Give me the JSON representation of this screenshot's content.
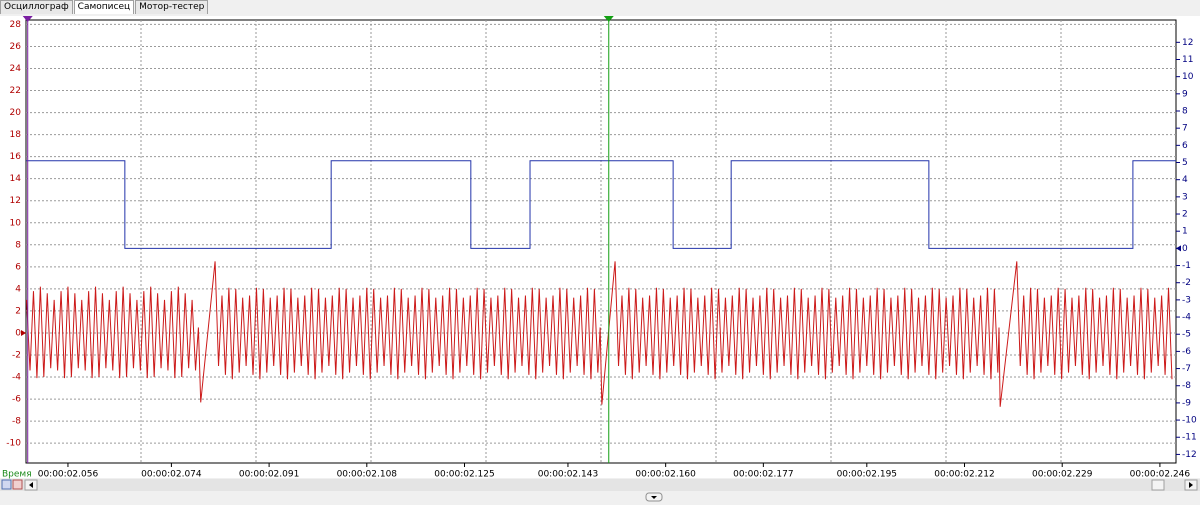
{
  "tabs": [
    "Осциллограф",
    "Самописец",
    "Мотор-тестер"
  ],
  "chart_data": {
    "type": "line",
    "x_label": "Время",
    "xlim": [
      2048.7,
      2248.8
    ],
    "xticks": [
      {
        "value": 2056,
        "label": "00:00:02.056"
      },
      {
        "value": 2074,
        "label": "00:00:02.074"
      },
      {
        "value": 2091,
        "label": "00:00:02.091"
      },
      {
        "value": 2108,
        "label": "00:00:02.108"
      },
      {
        "value": 2125,
        "label": "00:00:02.125"
      },
      {
        "value": 2143,
        "label": "00:00:02.143"
      },
      {
        "value": 2160,
        "label": "00:00:02.160"
      },
      {
        "value": 2177,
        "label": "00:00:02.177"
      },
      {
        "value": 2195,
        "label": "00:00:02.195"
      },
      {
        "value": 2212,
        "label": "00:00:02.212"
      },
      {
        "value": 2229,
        "label": "00:00:02.229"
      },
      {
        "value": 2246,
        "label": "00:00:02.246"
      }
    ],
    "ylim": [
      -11.8,
      28.4
    ],
    "yticks": [
      -10,
      -8,
      -6,
      -4,
      -2,
      0,
      2,
      4,
      6,
      8,
      10,
      12,
      14,
      16,
      18,
      20,
      22,
      24,
      26,
      28
    ],
    "y2lim": [
      -12.5,
      13.3
    ],
    "y2ticks": [
      -12,
      -11,
      -10,
      -9,
      -8,
      -7,
      -6,
      -5,
      -4,
      -3,
      -2,
      -1,
      0,
      1,
      2,
      3,
      4,
      5,
      6,
      7,
      8,
      9,
      10,
      11,
      12
    ],
    "ycolor": "#b00000",
    "y2color": "#000080",
    "grid": true,
    "cursors": [
      {
        "x": 2049.0,
        "color": "#7a1fa2"
      },
      {
        "x": 2150.1,
        "color": "#13a013"
      }
    ],
    "series": [
      {
        "color": "#2233aa",
        "axis": "y2",
        "x": [
          2048.7,
          2065.9,
          2065.9,
          2101.8,
          2101.8,
          2126.1,
          2126.1,
          2136.4,
          2136.4,
          2161.3,
          2161.3,
          2171.4,
          2171.4,
          2205.8,
          2205.8,
          2241.3,
          2241.3,
          2248.8
        ],
        "values": [
          5.1,
          5.1,
          0,
          0,
          5.1,
          5.1,
          0,
          0,
          5.1,
          5.1,
          0,
          0,
          5.1,
          5.1,
          0,
          0,
          5.1,
          5.1
        ]
      },
      {
        "color": "#cc1a1a",
        "axis": "y",
        "x": [
          2048.8,
          2049.4,
          2050.0,
          2050.6,
          2051.2,
          2051.8,
          2052.4,
          2053.0,
          2053.6,
          2054.2,
          2054.8,
          2055.4,
          2056.0,
          2056.6,
          2057.2,
          2057.8,
          2058.4,
          2059.0,
          2059.6,
          2060.2,
          2060.8,
          2061.4,
          2062.0,
          2062.6,
          2063.2,
          2063.8,
          2064.4,
          2065.0,
          2065.6,
          2066.2,
          2066.8,
          2067.4,
          2068.0,
          2068.6,
          2069.2,
          2069.8,
          2070.4,
          2071.0,
          2071.6,
          2072.2,
          2072.8,
          2073.4,
          2074.0,
          2074.6,
          2075.2,
          2075.8,
          2076.4,
          2077.0,
          2077.6,
          2078.2,
          2078.7,
          2079.1,
          2081.6,
          2082.2,
          2082.8,
          2083.4,
          2084.0,
          2084.6,
          2085.2,
          2085.8,
          2086.4,
          2087.0,
          2087.6,
          2088.2,
          2088.8,
          2089.4,
          2090.0,
          2090.6,
          2091.2,
          2091.8,
          2092.4,
          2093.0,
          2093.6,
          2094.2,
          2094.8,
          2095.4,
          2096.0,
          2096.6,
          2097.2,
          2097.8,
          2098.4,
          2099.0,
          2099.6,
          2100.2,
          2100.8,
          2101.4,
          2102.0,
          2102.6,
          2103.2,
          2103.8,
          2104.4,
          2105.0,
          2105.6,
          2106.2,
          2106.8,
          2107.4,
          2108.0,
          2108.6,
          2109.2,
          2109.8,
          2110.4,
          2111.0,
          2111.6,
          2112.2,
          2112.8,
          2113.4,
          2114.0,
          2114.6,
          2115.2,
          2115.8,
          2116.4,
          2117.0,
          2117.6,
          2118.2,
          2118.8,
          2119.4,
          2120.0,
          2120.6,
          2121.2,
          2121.8,
          2122.4,
          2123.0,
          2123.6,
          2124.2,
          2124.8,
          2125.4,
          2126.0,
          2126.6,
          2127.2,
          2127.8,
          2128.4,
          2129.0,
          2129.6,
          2130.2,
          2130.8,
          2131.4,
          2132.0,
          2132.6,
          2133.2,
          2133.8,
          2134.4,
          2135.0,
          2135.6,
          2136.2,
          2136.8,
          2137.4,
          2138.0,
          2138.6,
          2139.2,
          2139.8,
          2140.4,
          2141.0,
          2141.6,
          2142.2,
          2142.8,
          2143.4,
          2144.0,
          2144.6,
          2145.2,
          2145.8,
          2146.4,
          2147.0,
          2147.6,
          2148.2,
          2148.6,
          2148.9,
          2151.2,
          2151.8,
          2152.4,
          2153.0,
          2153.6,
          2154.2,
          2154.8,
          2155.4,
          2156.0,
          2156.6,
          2157.2,
          2157.8,
          2158.4,
          2159.0,
          2159.6,
          2160.2,
          2160.8,
          2161.4,
          2162.0,
          2162.6,
          2163.2,
          2163.8,
          2164.4,
          2165.0,
          2165.6,
          2166.2,
          2166.8,
          2167.4,
          2168.0,
          2168.6,
          2169.2,
          2169.8,
          2170.4,
          2171.0,
          2171.6,
          2172.2,
          2172.8,
          2173.4,
          2174.0,
          2174.6,
          2175.2,
          2175.8,
          2176.4,
          2177.0,
          2177.6,
          2178.2,
          2178.8,
          2179.4,
          2180.0,
          2180.6,
          2181.2,
          2181.8,
          2182.4,
          2183.0,
          2183.6,
          2184.2,
          2184.8,
          2185.4,
          2186.0,
          2186.6,
          2187.2,
          2187.8,
          2188.4,
          2189.0,
          2189.6,
          2190.2,
          2190.8,
          2191.4,
          2192.0,
          2192.6,
          2193.2,
          2193.8,
          2194.4,
          2195.0,
          2195.6,
          2196.2,
          2196.8,
          2197.4,
          2198.0,
          2198.6,
          2199.2,
          2199.8,
          2200.4,
          2201.0,
          2201.6,
          2202.2,
          2202.8,
          2203.4,
          2204.0,
          2204.6,
          2205.2,
          2205.8,
          2206.4,
          2207.0,
          2207.6,
          2208.2,
          2208.8,
          2209.4,
          2210.0,
          2210.6,
          2211.2,
          2211.8,
          2212.4,
          2213.0,
          2213.6,
          2214.2,
          2214.8,
          2215.4,
          2216.0,
          2216.6,
          2217.2,
          2217.8,
          2218.0,
          2218.2,
          2221.1,
          2221.7,
          2222.3,
          2222.9,
          2223.5,
          2224.1,
          2224.7,
          2225.3,
          2225.9,
          2226.5,
          2227.1,
          2227.7,
          2228.3,
          2228.9,
          2229.5,
          2230.1,
          2230.7,
          2231.3,
          2231.9,
          2232.5,
          2233.1,
          2233.7,
          2234.3,
          2234.9,
          2235.5,
          2236.1,
          2236.7,
          2237.3,
          2237.9,
          2238.5,
          2239.1,
          2239.7,
          2240.3,
          2240.9,
          2241.5,
          2242.1,
          2242.7,
          2243.3,
          2243.9,
          2244.5,
          2245.1,
          2245.7,
          2246.3,
          2246.9,
          2247.5,
          2248.1
        ],
        "values": [
          3.0,
          -3.4,
          3.8,
          -4.1,
          4.2,
          -4.0,
          3.6,
          -3.2,
          3.0,
          -3.4,
          3.8,
          -4.1,
          4.2,
          -4.0,
          3.6,
          -3.2,
          3.0,
          -3.4,
          3.8,
          -4.1,
          4.2,
          -4.0,
          3.6,
          -3.2,
          3.0,
          -3.4,
          3.8,
          -4.1,
          4.2,
          -4.0,
          3.6,
          -3.2,
          3.0,
          -3.4,
          3.8,
          -4.1,
          4.2,
          -4.0,
          3.6,
          -3.2,
          3.0,
          -3.4,
          3.8,
          -4.1,
          4.2,
          -4.0,
          3.6,
          -3.2,
          3.0,
          -3.4,
          0.5,
          -6.3,
          6.5,
          -3.0,
          3.4,
          -3.8,
          4.1,
          -4.2,
          4.0,
          -3.6,
          3.2,
          -3.0,
          3.4,
          -3.8,
          4.1,
          -4.2,
          4.0,
          -3.6,
          3.2,
          -3.0,
          3.4,
          -3.8,
          4.1,
          -4.2,
          4.0,
          -3.6,
          3.2,
          -3.0,
          3.4,
          -3.8,
          4.1,
          -4.2,
          4.0,
          -3.6,
          3.2,
          -3.0,
          3.4,
          -3.8,
          4.1,
          -4.2,
          4.0,
          -3.6,
          3.2,
          -3.0,
          3.4,
          -3.8,
          4.1,
          -4.2,
          4.0,
          -3.6,
          3.2,
          -3.0,
          3.4,
          -3.8,
          4.1,
          -4.2,
          4.0,
          -3.6,
          3.2,
          -3.0,
          3.4,
          -3.8,
          4.1,
          -4.2,
          4.0,
          -3.6,
          3.2,
          -3.0,
          3.4,
          -3.8,
          4.1,
          -4.2,
          4.0,
          -3.6,
          3.2,
          -3.0,
          3.4,
          -3.8,
          4.1,
          -4.2,
          4.0,
          -3.6,
          3.2,
          -3.0,
          3.4,
          -3.8,
          4.1,
          -4.2,
          4.0,
          -3.6,
          3.2,
          -3.0,
          3.4,
          -3.8,
          4.1,
          -4.2,
          4.0,
          -3.6,
          3.2,
          -3.0,
          3.4,
          -3.8,
          4.1,
          -4.2,
          4.0,
          -3.6,
          3.2,
          -3.0,
          3.4,
          -3.8,
          4.1,
          -4.2,
          4.0,
          -3.6,
          0.5,
          -6.5,
          6.5,
          -3.0,
          3.4,
          -3.8,
          4.1,
          -4.2,
          4.0,
          -3.6,
          3.2,
          -3.0,
          3.4,
          -3.8,
          4.1,
          -4.2,
          4.0,
          -3.6,
          3.2,
          -3.0,
          3.4,
          -3.8,
          4.1,
          -4.2,
          4.0,
          -3.6,
          3.2,
          -3.0,
          3.4,
          -3.8,
          4.1,
          -4.2,
          4.0,
          -3.6,
          3.2,
          -3.0,
          3.4,
          -3.8,
          4.1,
          -4.2,
          4.0,
          -3.6,
          3.2,
          -3.0,
          3.4,
          -3.8,
          4.1,
          -4.2,
          4.0,
          -3.6,
          3.2,
          -3.0,
          3.4,
          -3.8,
          4.1,
          -4.2,
          4.0,
          -3.6,
          3.2,
          -3.0,
          3.4,
          -3.8,
          4.1,
          -4.2,
          4.0,
          -3.6,
          3.2,
          -3.0,
          3.4,
          -3.8,
          4.1,
          -4.2,
          4.0,
          -3.6,
          3.2,
          -3.0,
          3.4,
          -3.8,
          4.1,
          -4.2,
          4.0,
          -3.6,
          3.2,
          -3.0,
          3.4,
          -3.8,
          4.1,
          -4.2,
          4.0,
          -3.6,
          3.2,
          -3.0,
          3.4,
          -3.8,
          4.1,
          -4.2,
          4.0,
          -3.6,
          3.2,
          -3.0,
          3.4,
          -3.8,
          4.1,
          -4.2,
          4.0,
          -3.6,
          3.2,
          -3.0,
          3.4,
          -3.8,
          4.1,
          -4.2,
          4.0,
          -3.6,
          0.5,
          -6.7,
          6.5,
          -3.0,
          3.4,
          -3.8,
          4.1,
          -4.2,
          4.0,
          -3.6,
          3.2,
          -3.0,
          3.4,
          -3.8,
          4.1,
          -4.2,
          4.0,
          -3.6,
          3.2,
          -3.0,
          3.4,
          -3.8,
          4.1,
          -4.2,
          4.0,
          -3.6,
          3.2,
          -3.0,
          3.4,
          -3.8,
          4.1,
          -4.2,
          4.0,
          -3.6,
          3.2,
          -3.0,
          3.4,
          -3.8,
          4.1,
          -4.2,
          4.0,
          -3.6,
          3.2,
          -3.0,
          3.4,
          -3.8,
          4.1,
          -4.2
        ]
      }
    ]
  }
}
